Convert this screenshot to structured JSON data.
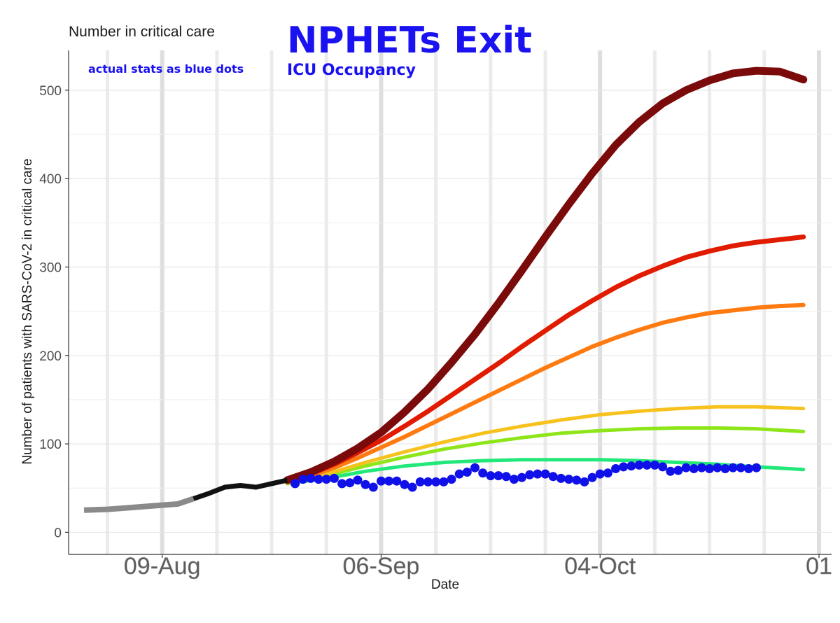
{
  "annotations": {
    "headline": "NPHETs Exit",
    "subheadline": "ICU Occupancy",
    "note": "actual stats as blue dots"
  },
  "chart_data": {
    "type": "line",
    "title": "Number in critical care",
    "xlabel": "Date",
    "ylabel": "Number of patients with SARS-CoV-2 in critical care",
    "x_ticks": [
      "09-Aug",
      "06-Sep",
      "04-Oct",
      "01"
    ],
    "y_ticks": [
      0,
      100,
      200,
      300,
      400,
      500
    ],
    "ylim": [
      -25,
      545
    ],
    "xlim": [
      "2021-07-30",
      "2021-11-01"
    ],
    "grid": true,
    "colors": {
      "dark-red": "#7b0a0a",
      "red": "#e01b00",
      "orange": "#ff7a10",
      "gold": "#f7c21e",
      "lime": "#8ee61a",
      "green": "#22e87a",
      "history-grey": "#8a8a8a",
      "history-black": "#111111",
      "actual": "#1010e8"
    },
    "series": [
      {
        "color_key": "dark-red",
        "x": [
          "2021-08-25",
          "2021-08-28",
          "2021-08-31",
          "2021-09-03",
          "2021-09-06",
          "2021-09-09",
          "2021-09-12",
          "2021-09-15",
          "2021-09-18",
          "2021-09-21",
          "2021-09-24",
          "2021-09-27",
          "2021-09-30",
          "2021-10-03",
          "2021-10-06",
          "2021-10-09",
          "2021-10-12",
          "2021-10-15",
          "2021-10-18",
          "2021-10-21",
          "2021-10-24",
          "2021-10-27",
          "2021-10-30"
        ],
        "y": [
          59,
          68,
          80,
          95,
          113,
          136,
          162,
          192,
          224,
          259,
          296,
          334,
          371,
          406,
          438,
          464,
          485,
          500,
          511,
          519,
          522,
          521,
          512
        ]
      },
      {
        "color_key": "red",
        "x": [
          "2021-08-25",
          "2021-08-28",
          "2021-08-31",
          "2021-09-03",
          "2021-09-06",
          "2021-09-09",
          "2021-09-12",
          "2021-09-15",
          "2021-09-18",
          "2021-09-21",
          "2021-09-24",
          "2021-09-27",
          "2021-09-30",
          "2021-10-03",
          "2021-10-06",
          "2021-10-09",
          "2021-10-12",
          "2021-10-15",
          "2021-10-18",
          "2021-10-21",
          "2021-10-24",
          "2021-10-27",
          "2021-10-30"
        ],
        "y": [
          58,
          66,
          77,
          90,
          104,
          120,
          137,
          155,
          173,
          191,
          210,
          228,
          246,
          262,
          277,
          290,
          301,
          311,
          318,
          324,
          328,
          331,
          334
        ]
      },
      {
        "color_key": "orange",
        "x": [
          "2021-08-25",
          "2021-08-28",
          "2021-08-31",
          "2021-09-03",
          "2021-09-06",
          "2021-09-09",
          "2021-09-12",
          "2021-09-15",
          "2021-09-18",
          "2021-09-21",
          "2021-09-24",
          "2021-09-27",
          "2021-09-30",
          "2021-10-03",
          "2021-10-06",
          "2021-10-09",
          "2021-10-12",
          "2021-10-15",
          "2021-10-18",
          "2021-10-21",
          "2021-10-24",
          "2021-10-27",
          "2021-10-30"
        ],
        "y": [
          57,
          64,
          73,
          84,
          96,
          108,
          121,
          134,
          147,
          160,
          173,
          186,
          198,
          210,
          220,
          229,
          237,
          243,
          248,
          251,
          254,
          256,
          257
        ]
      },
      {
        "color_key": "gold",
        "x": [
          "2021-08-25",
          "2021-08-30",
          "2021-09-04",
          "2021-09-09",
          "2021-09-14",
          "2021-09-19",
          "2021-09-24",
          "2021-09-29",
          "2021-10-04",
          "2021-10-09",
          "2021-10-14",
          "2021-10-19",
          "2021-10-24",
          "2021-10-30"
        ],
        "y": [
          56,
          66,
          79,
          91,
          102,
          112,
          120,
          127,
          133,
          137,
          140,
          142,
          142,
          140
        ]
      },
      {
        "color_key": "lime",
        "x": [
          "2021-08-25",
          "2021-08-30",
          "2021-09-04",
          "2021-09-09",
          "2021-09-14",
          "2021-09-19",
          "2021-09-24",
          "2021-09-29",
          "2021-10-04",
          "2021-10-09",
          "2021-10-14",
          "2021-10-19",
          "2021-10-24",
          "2021-10-30"
        ],
        "y": [
          55,
          64,
          75,
          85,
          94,
          101,
          107,
          112,
          115,
          117,
          118,
          118,
          117,
          114
        ]
      },
      {
        "color_key": "green",
        "x": [
          "2021-08-25",
          "2021-08-30",
          "2021-09-04",
          "2021-09-09",
          "2021-09-14",
          "2021-09-19",
          "2021-09-24",
          "2021-09-29",
          "2021-10-04",
          "2021-10-09",
          "2021-10-14",
          "2021-10-19",
          "2021-10-24",
          "2021-10-30"
        ],
        "y": [
          55,
          61,
          69,
          75,
          79,
          81,
          82,
          82,
          82,
          81,
          79,
          77,
          74,
          71
        ]
      }
    ],
    "history": {
      "x": [
        "2021-07-30",
        "2021-08-02",
        "2021-08-05",
        "2021-08-08",
        "2021-08-11",
        "2021-08-13",
        "2021-08-15",
        "2021-08-17",
        "2021-08-19",
        "2021-08-21",
        "2021-08-23",
        "2021-08-25"
      ],
      "y": [
        25,
        26,
        28,
        30,
        32,
        38,
        44,
        51,
        53,
        51,
        55,
        59
      ]
    },
    "actual": {
      "x": [
        "2021-08-26",
        "2021-08-27",
        "2021-08-28",
        "2021-08-29",
        "2021-08-30",
        "2021-08-31",
        "2021-09-01",
        "2021-09-02",
        "2021-09-03",
        "2021-09-04",
        "2021-09-05",
        "2021-09-06",
        "2021-09-07",
        "2021-09-08",
        "2021-09-09",
        "2021-09-10",
        "2021-09-11",
        "2021-09-12",
        "2021-09-13",
        "2021-09-14",
        "2021-09-15",
        "2021-09-16",
        "2021-09-17",
        "2021-09-18",
        "2021-09-19",
        "2021-09-20",
        "2021-09-21",
        "2021-09-22",
        "2021-09-23",
        "2021-09-24",
        "2021-09-25",
        "2021-09-26",
        "2021-09-27",
        "2021-09-28",
        "2021-09-29",
        "2021-09-30",
        "2021-10-01",
        "2021-10-02",
        "2021-10-03",
        "2021-10-04",
        "2021-10-05",
        "2021-10-06",
        "2021-10-07",
        "2021-10-08",
        "2021-10-09",
        "2021-10-10",
        "2021-10-11",
        "2021-10-12",
        "2021-10-13",
        "2021-10-14",
        "2021-10-15",
        "2021-10-16",
        "2021-10-17",
        "2021-10-18",
        "2021-10-19",
        "2021-10-20",
        "2021-10-21",
        "2021-10-22",
        "2021-10-23",
        "2021-10-24"
      ],
      "y": [
        55,
        60,
        61,
        60,
        60,
        61,
        55,
        56,
        59,
        54,
        51,
        58,
        58,
        58,
        54,
        51,
        57,
        57,
        57,
        57,
        60,
        66,
        68,
        73,
        67,
        64,
        64,
        63,
        60,
        62,
        65,
        66,
        66,
        63,
        61,
        60,
        59,
        57,
        62,
        66,
        67,
        72,
        74,
        75,
        76,
        76,
        76,
        74,
        69,
        70,
        73,
        72,
        73,
        72,
        73,
        72,
        73,
        73,
        72,
        73
      ]
    }
  }
}
